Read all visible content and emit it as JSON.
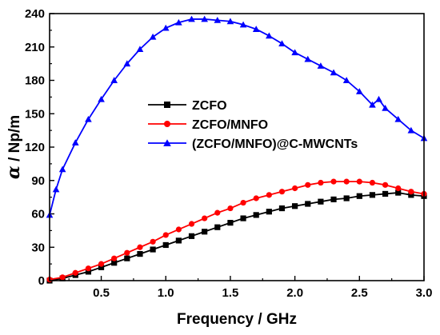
{
  "chart_data": {
    "type": "line",
    "xlabel": "Frequency / GHz",
    "ylabel_symbol": "α",
    "ylabel_rest": " / Np/m",
    "xlim": [
      0.1,
      3.0
    ],
    "ylim": [
      0,
      240
    ],
    "xticks": [
      "0.5",
      "1.0",
      "1.5",
      "2.0",
      "2.5",
      "3.0"
    ],
    "yticks": [
      "0",
      "30",
      "60",
      "90",
      "120",
      "150",
      "180",
      "210",
      "240"
    ],
    "legend_position": "center-right",
    "series": [
      {
        "name": "ZCFO",
        "color": "#000000",
        "marker": "square",
        "x": [
          0.1,
          0.2,
          0.3,
          0.4,
          0.5,
          0.6,
          0.7,
          0.8,
          0.9,
          1.0,
          1.1,
          1.2,
          1.3,
          1.4,
          1.5,
          1.6,
          1.7,
          1.8,
          1.9,
          2.0,
          2.1,
          2.2,
          2.3,
          2.4,
          2.5,
          2.6,
          2.7,
          2.8,
          2.9,
          3.0
        ],
        "y": [
          0,
          2,
          5,
          8,
          12,
          16,
          20,
          24,
          28,
          32,
          36,
          40,
          44,
          48,
          52,
          56,
          59,
          62,
          65,
          67,
          69,
          71,
          73,
          74,
          76,
          77,
          78,
          79,
          77,
          76
        ]
      },
      {
        "name": "ZCFO/MNFO",
        "color": "#ff0000",
        "marker": "circle",
        "x": [
          0.1,
          0.2,
          0.3,
          0.4,
          0.5,
          0.6,
          0.7,
          0.8,
          0.9,
          1.0,
          1.1,
          1.2,
          1.3,
          1.4,
          1.5,
          1.6,
          1.7,
          1.8,
          1.9,
          2.0,
          2.1,
          2.2,
          2.3,
          2.4,
          2.5,
          2.6,
          2.7,
          2.8,
          2.9,
          3.0
        ],
        "y": [
          1,
          3,
          7,
          11,
          15,
          20,
          25,
          30,
          35,
          41,
          46,
          51,
          56,
          61,
          65,
          70,
          74,
          77,
          80,
          83,
          86,
          88,
          89,
          89,
          89,
          88,
          86,
          83,
          80,
          78
        ]
      },
      {
        "name": "(ZCFO/MNFO)@C-MWCNTs",
        "color": "#0000ff",
        "marker": "triangle",
        "x": [
          0.1,
          0.15,
          0.2,
          0.3,
          0.4,
          0.5,
          0.6,
          0.7,
          0.8,
          0.9,
          1.0,
          1.1,
          1.2,
          1.3,
          1.4,
          1.5,
          1.6,
          1.7,
          1.8,
          1.9,
          2.0,
          2.1,
          2.2,
          2.3,
          2.4,
          2.5,
          2.6,
          2.65,
          2.7,
          2.8,
          2.9,
          3.0
        ],
        "y": [
          59,
          82,
          100,
          124,
          145,
          163,
          180,
          195,
          208,
          219,
          227,
          232,
          235,
          235,
          234,
          233,
          230,
          226,
          220,
          213,
          205,
          199,
          193,
          187,
          180,
          170,
          158,
          163,
          155,
          145,
          135,
          128
        ]
      }
    ]
  }
}
